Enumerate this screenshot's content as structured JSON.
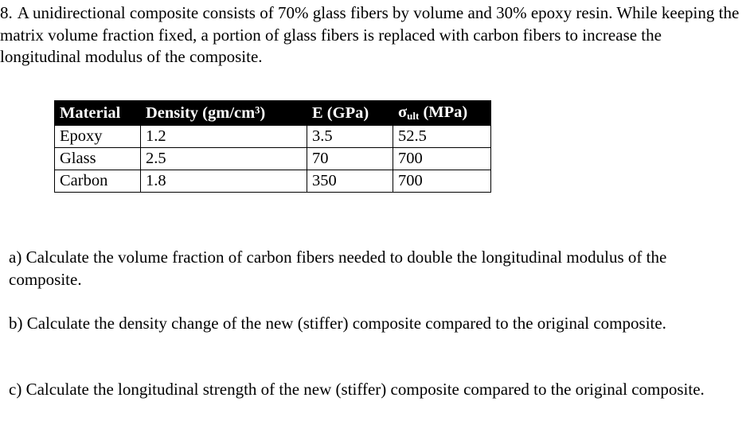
{
  "problem": {
    "number": "8.",
    "text": "A unidirectional composite consists of 70% glass fibers by volume and 30% epoxy resin. While keeping the matrix volume fraction fixed, a portion of glass fibers is replaced with carbon fibers to increase the longitudinal modulus of the composite."
  },
  "table": {
    "headers": {
      "material": "Material",
      "density": "Density (gm/cm³)",
      "modulus": "E (GPa)",
      "strength_symbol": "σ",
      "strength_sub": "ult",
      "strength_unit": " (MPa)"
    },
    "rows": [
      {
        "material": "Epoxy",
        "density": "1.2",
        "modulus": "3.5",
        "strength": "52.5"
      },
      {
        "material": "Glass",
        "density": "2.5",
        "modulus": "70",
        "strength": "700"
      },
      {
        "material": "Carbon",
        "density": "1.8",
        "modulus": "350",
        "strength": "700"
      }
    ]
  },
  "questions": {
    "a": "a) Calculate the volume fraction of carbon fibers needed to double the longitudinal modulus of the composite.",
    "b": "b) Calculate the density change of the new (stiffer) composite compared to the original composite.",
    "c": "c) Calculate the longitudinal strength of the new (stiffer) composite compared to the original composite."
  }
}
